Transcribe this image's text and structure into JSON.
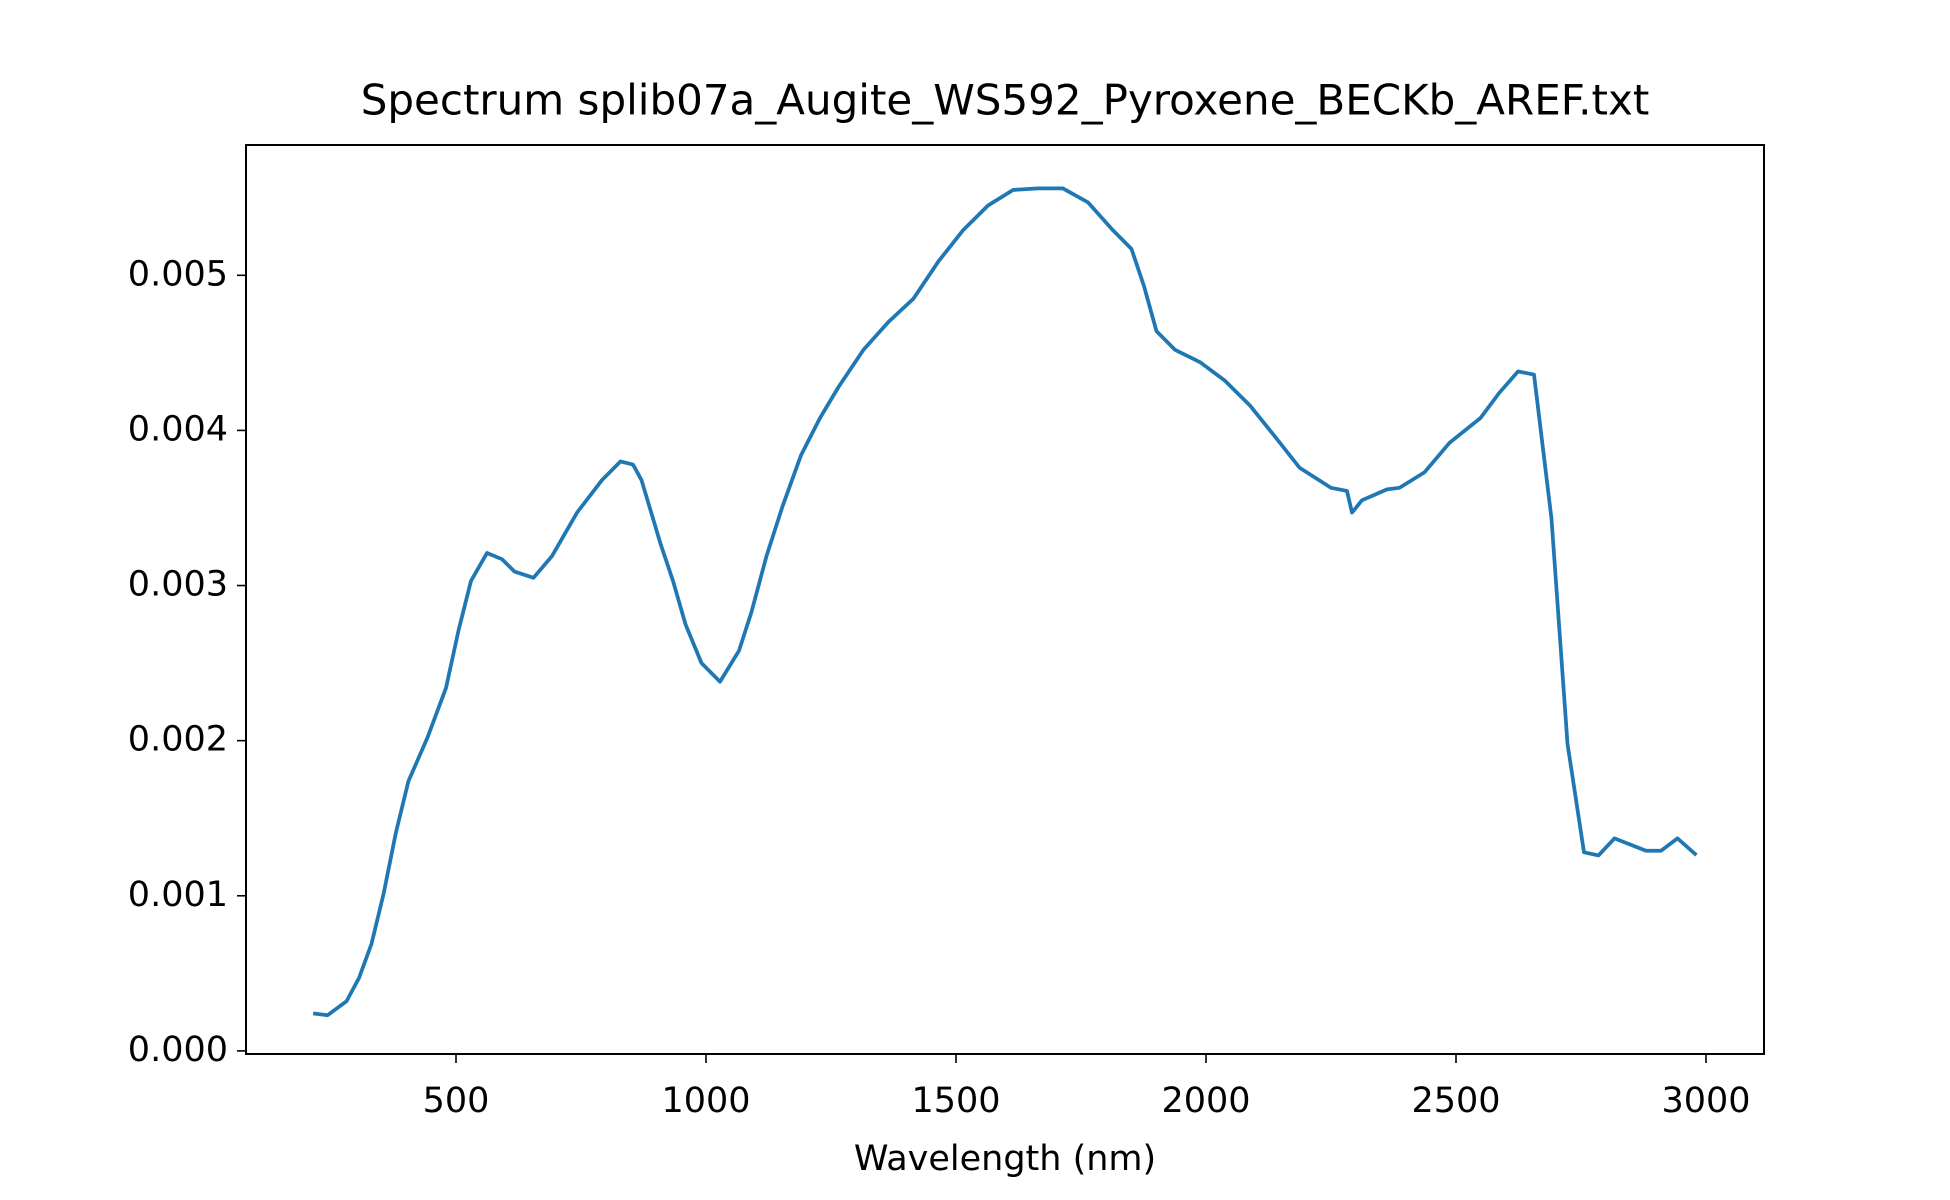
{
  "chart_data": {
    "type": "line",
    "title": "Spectrum splib07a_Augite_WS592_Pyroxene_BECKb_AREF.txt",
    "x_label": "Wavelength (nm)",
    "x": [
      218,
      243,
      281,
      306,
      331,
      355,
      380,
      405,
      443,
      480,
      505,
      530,
      562,
      592,
      617,
      655,
      692,
      742,
      792,
      829,
      854,
      871,
      909,
      934,
      959,
      991,
      1028,
      1066,
      1091,
      1121,
      1153,
      1190,
      1228,
      1265,
      1315,
      1365,
      1415,
      1465,
      1514,
      1564,
      1614,
      1664,
      1714,
      1764,
      1814,
      1851,
      1876,
      1901,
      1938,
      1988,
      2038,
      2088,
      2138,
      2187,
      2250,
      2282,
      2292,
      2312,
      2362,
      2387,
      2437,
      2487,
      2549,
      2586,
      2624,
      2656,
      2691,
      2723,
      2756,
      2785,
      2817,
      2880,
      2910,
      2943,
      2978
    ],
    "series": [
      {
        "color": "#1f77b4",
        "values": [
          0.00024,
          0.00023,
          0.00032,
          0.00047,
          0.00069,
          0.00101,
          0.00141,
          0.00174,
          0.00202,
          0.00234,
          0.00271,
          0.00303,
          0.00321,
          0.00317,
          0.00309,
          0.00305,
          0.00319,
          0.00347,
          0.00368,
          0.0038,
          0.00378,
          0.00368,
          0.00327,
          0.00303,
          0.00275,
          0.0025,
          0.00238,
          0.00258,
          0.00283,
          0.00319,
          0.00351,
          0.00384,
          0.00408,
          0.00428,
          0.00452,
          0.0047,
          0.00485,
          0.00509,
          0.00529,
          0.00545,
          0.00555,
          0.00556,
          0.00556,
          0.00547,
          0.00529,
          0.00517,
          0.00493,
          0.00464,
          0.00452,
          0.00444,
          0.00432,
          0.00416,
          0.00396,
          0.00376,
          0.00363,
          0.00361,
          0.00347,
          0.00355,
          0.00362,
          0.00363,
          0.00373,
          0.00392,
          0.00408,
          0.00424,
          0.00438,
          0.00436,
          0.00343,
          0.00198,
          0.00128,
          0.00126,
          0.00137,
          0.00129,
          0.00129,
          0.00137,
          0.00127
        ]
      }
    ],
    "xlim": [
      80,
      3116
    ],
    "ylim": [
      -2e-05,
      0.00584
    ],
    "xticks": [
      500,
      1000,
      1500,
      2000,
      2500,
      3000
    ],
    "yticks": [
      {
        "value": 0,
        "label": "0.000"
      },
      {
        "value": 0.001,
        "label": "0.001"
      },
      {
        "value": 0.002,
        "label": "0.002"
      },
      {
        "value": 0.003,
        "label": "0.003"
      },
      {
        "value": 0.004,
        "label": "0.004"
      },
      {
        "value": 0.005,
        "label": "0.005"
      }
    ],
    "grid": false
  }
}
